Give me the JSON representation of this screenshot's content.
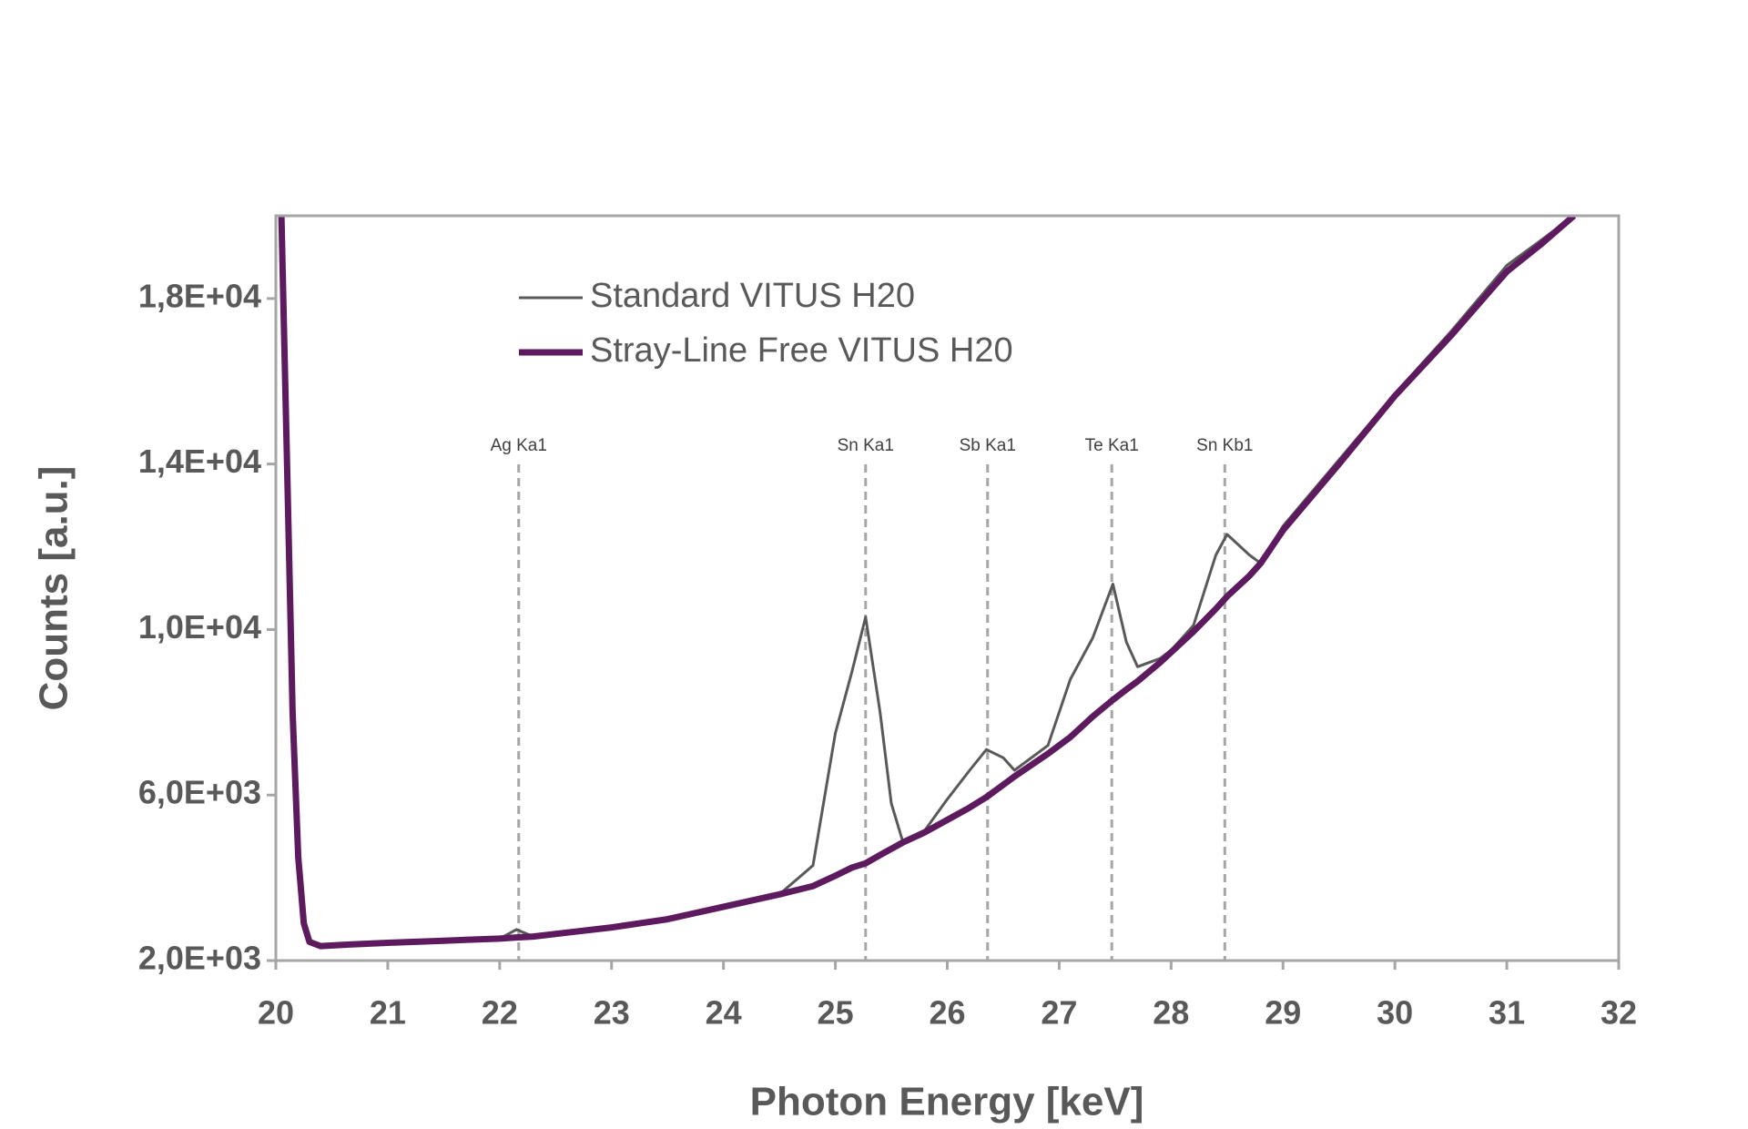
{
  "chart_data": {
    "type": "line",
    "x_label": "Photon Energy [keV]",
    "y_label": "Counts [a.u.]",
    "x": [
      20.05,
      20.1,
      20.15,
      20.2,
      20.25,
      20.3,
      20.4,
      20.6,
      21,
      21.5,
      22,
      22.15,
      22.3,
      23,
      23.5,
      24,
      24.5,
      24.8,
      25,
      25.15,
      25.27,
      25.4,
      25.5,
      25.6,
      25.8,
      26,
      26.2,
      26.35,
      26.5,
      26.6,
      26.9,
      27.1,
      27.3,
      27.48,
      27.6,
      27.7,
      27.9,
      28,
      28.2,
      28.4,
      28.5,
      28.7,
      28.8,
      29,
      29.5,
      30,
      30.5,
      31,
      31.3,
      31.6
    ],
    "series": [
      {
        "name": "Standard VITUS H20",
        "color": "#595959",
        "width": 3,
        "values": [
          20000,
          14000,
          8000,
          4500,
          2900,
          2450,
          2350,
          2380,
          2430,
          2480,
          2530,
          2750,
          2580,
          2800,
          3000,
          3300,
          3600,
          4300,
          7500,
          9000,
          10300,
          8000,
          5800,
          4900,
          5150,
          5900,
          6600,
          7100,
          6900,
          6600,
          7200,
          8800,
          9800,
          11100,
          9700,
          9100,
          9300,
          9500,
          10100,
          11800,
          12300,
          11800,
          11600,
          12500,
          14100,
          15700,
          17200,
          18800,
          19400,
          20000
        ]
      },
      {
        "name": "Stray-Line Free VITUS H20",
        "color": "#5e1a5e",
        "width": 7,
        "values": [
          20000,
          14000,
          8000,
          4500,
          2900,
          2450,
          2350,
          2380,
          2430,
          2480,
          2530,
          2560,
          2580,
          2800,
          3000,
          3300,
          3600,
          3800,
          4050,
          4250,
          4350,
          4550,
          4700,
          4850,
          5100,
          5400,
          5700,
          5950,
          6250,
          6450,
          7000,
          7400,
          7900,
          8300,
          8550,
          8750,
          9200,
          9450,
          9950,
          10500,
          10800,
          11300,
          11600,
          12400,
          14000,
          15650,
          17100,
          18650,
          19300,
          20000
        ]
      }
    ],
    "xlim": [
      20,
      32
    ],
    "xticks": [
      20,
      21,
      22,
      23,
      24,
      25,
      26,
      27,
      28,
      29,
      30,
      31,
      32
    ],
    "ylim": [
      2000,
      20000
    ],
    "yticks": [
      {
        "value": 2000,
        "label": "2,0E+03"
      },
      {
        "value": 6000,
        "label": "6,0E+03"
      },
      {
        "value": 10000,
        "label": "1,0E+04"
      },
      {
        "value": 14000,
        "label": "1,4E+04"
      },
      {
        "value": 18000,
        "label": "1,8E+04"
      }
    ],
    "annotations": [
      {
        "label": "Ag Ka1",
        "x": 22.17
      },
      {
        "label": "Sn Ka1",
        "x": 25.27
      },
      {
        "label": "Sb Ka1",
        "x": 26.36
      },
      {
        "label": "Te Ka1",
        "x": 27.47
      },
      {
        "label": "Sn Kb1",
        "x": 28.48
      }
    ],
    "legend": "upper left",
    "grid": false
  }
}
